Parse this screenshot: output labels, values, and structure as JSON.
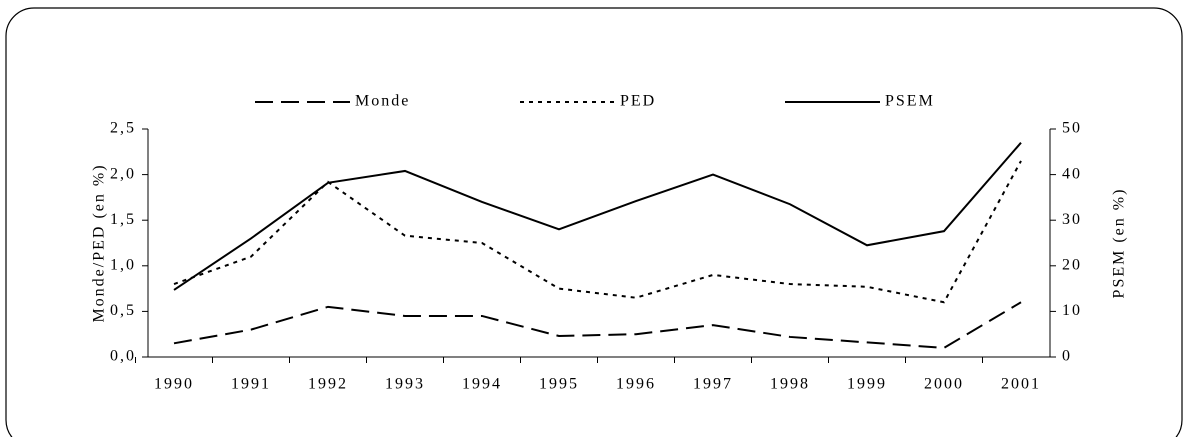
{
  "chart_data": {
    "type": "line",
    "categories": [
      "1990",
      "1991",
      "1992",
      "1993",
      "1994",
      "1995",
      "1996",
      "1997",
      "1998",
      "1999",
      "2000",
      "2001"
    ],
    "series": [
      {
        "name": "Monde",
        "color": "#000000",
        "dash": "dashed",
        "values": [
          0.15,
          0.3,
          0.55,
          0.45,
          0.45,
          0.23,
          0.25,
          0.35,
          0.22,
          0.16,
          0.1,
          0.6
        ]
      },
      {
        "name": "PED",
        "color": "#000000",
        "dash": "dotted",
        "values": [
          0.8,
          1.1,
          1.92,
          1.33,
          1.25,
          0.75,
          0.65,
          0.9,
          0.8,
          0.77,
          0.6,
          2.15
        ]
      },
      {
        "name": "PSEM",
        "color": "#000000",
        "dash": "solid",
        "axis": "y2",
        "values": [
          14.7,
          26,
          38.2,
          40.8,
          34,
          28,
          34.2,
          40,
          33.5,
          24.5,
          27.6,
          47
        ]
      }
    ],
    "ylabel": "Monde/PED (en %)",
    "y2label": "PSEM (en %)",
    "ylim": [
      0,
      2.5
    ],
    "yticks": [
      {
        "value": 0,
        "label": "0,0"
      },
      {
        "value": 0.5,
        "label": "0,5"
      },
      {
        "value": 1,
        "label": "1,0"
      },
      {
        "value": 1.5,
        "label": "1,5"
      },
      {
        "value": 2,
        "label": "2,0"
      },
      {
        "value": 2.5,
        "label": "2,5"
      }
    ],
    "y2lim": [
      0,
      50
    ],
    "y2ticks": [
      0,
      10,
      20,
      30,
      40,
      50
    ],
    "legend": "top"
  }
}
